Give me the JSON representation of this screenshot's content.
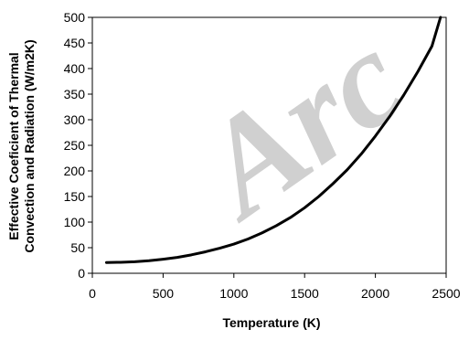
{
  "chart_data": {
    "type": "line",
    "title": "",
    "xlabel": "Temperature (K)",
    "ylabel_lines": [
      "Effective Coeficient of Thermal",
      "Convection and Radiation (W/m2K)"
    ],
    "xlim": [
      0,
      2500
    ],
    "ylim": [
      0,
      500
    ],
    "x_ticks": [
      0,
      500,
      1000,
      1500,
      2000,
      2500
    ],
    "y_ticks": [
      0,
      50,
      100,
      150,
      200,
      250,
      300,
      350,
      400,
      450,
      500
    ],
    "grid": false,
    "legend": "none",
    "series": [
      {
        "color": "#000000",
        "x": [
          100,
          200,
          300,
          400,
          500,
          600,
          700,
          800,
          900,
          1000,
          1100,
          1200,
          1300,
          1400,
          1500,
          1600,
          1700,
          1800,
          1900,
          2000,
          2100,
          2200,
          2300,
          2400,
          2460
        ],
        "y": [
          21,
          21.5,
          22.5,
          24.5,
          27.5,
          31,
          36,
          42,
          49,
          57,
          67,
          79,
          93,
          109,
          128,
          150,
          175,
          202,
          233,
          268,
          306,
          348,
          394,
          444,
          500
        ]
      }
    ]
  },
  "watermark": {
    "text": "Arc",
    "color": "#d0d0d0"
  }
}
